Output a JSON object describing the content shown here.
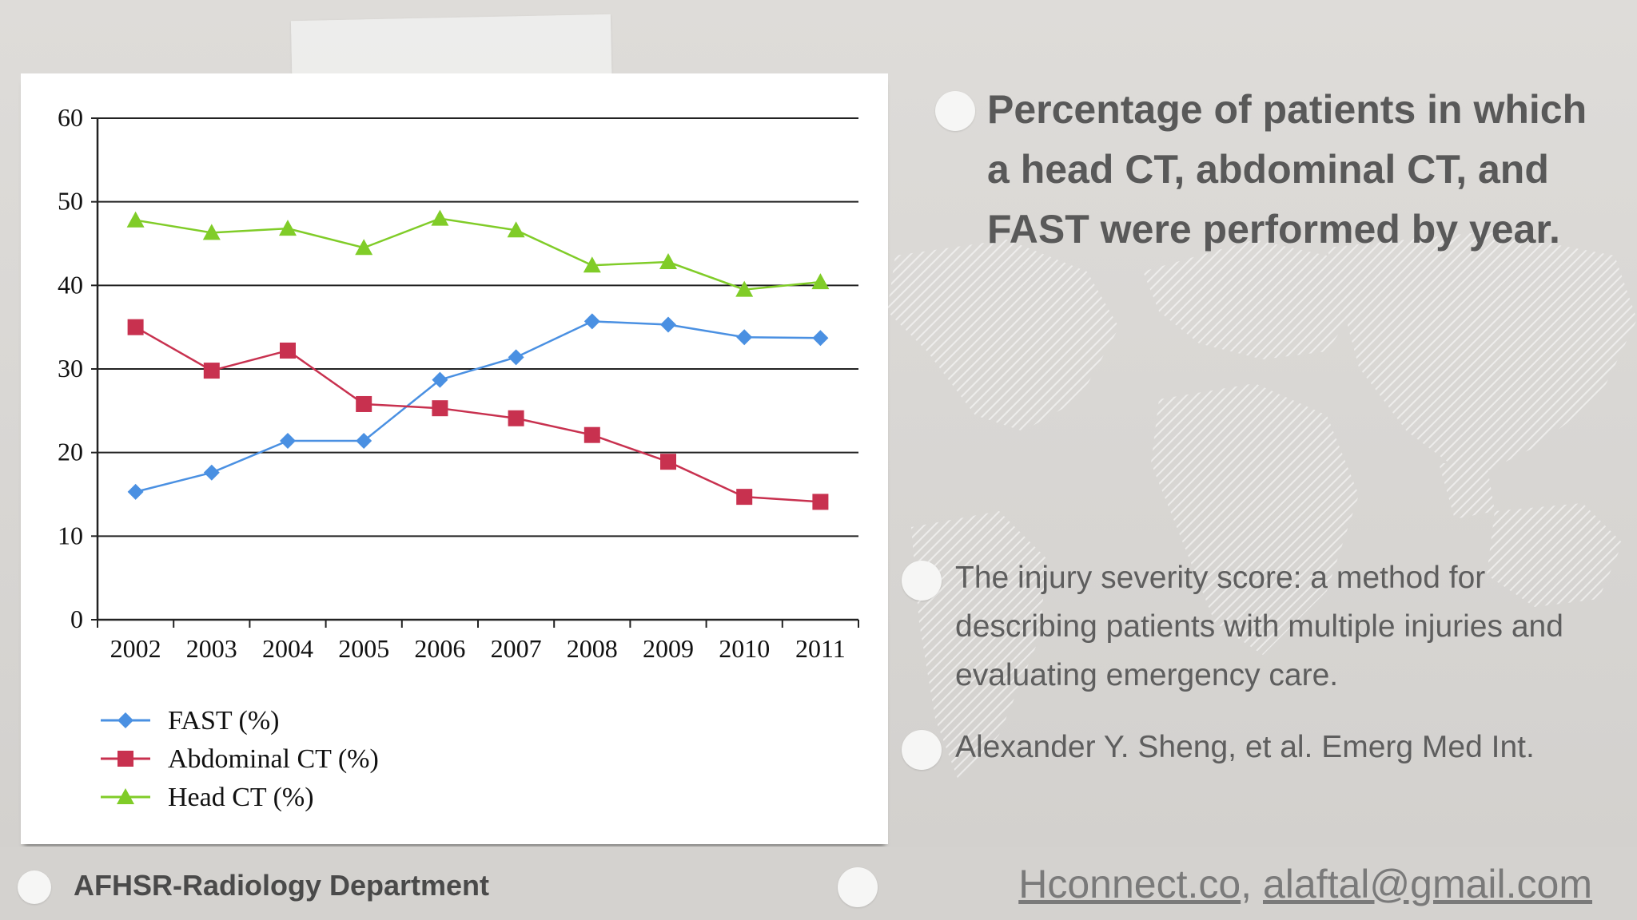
{
  "chart_data": {
    "type": "line",
    "categories": [
      "2002",
      "2003",
      "2004",
      "2005",
      "2006",
      "2007",
      "2008",
      "2009",
      "2010",
      "2011"
    ],
    "ylim": [
      0,
      60
    ],
    "yticks": [
      0,
      10,
      20,
      30,
      40,
      50,
      60
    ],
    "grid": true,
    "legend_position": "bottom-left",
    "series": [
      {
        "name": "FAST (%)",
        "marker": "diamond",
        "color": "#4a90e2",
        "values": [
          15.3,
          17.6,
          21.4,
          21.4,
          28.7,
          31.4,
          35.7,
          35.3,
          33.8,
          33.7
        ]
      },
      {
        "name": "Abdominal CT (%)",
        "marker": "square",
        "color": "#c8314f",
        "values": [
          35.0,
          29.8,
          32.2,
          25.8,
          25.3,
          24.1,
          22.1,
          18.9,
          14.7,
          14.1
        ]
      },
      {
        "name": "Head CT (%)",
        "marker": "triangle",
        "color": "#80cc28",
        "values": [
          47.8,
          46.3,
          46.8,
          44.5,
          48.0,
          46.6,
          42.4,
          42.8,
          39.5,
          40.4
        ]
      }
    ]
  },
  "slide": {
    "title": "Percentage of patients in which a head CT, abdominal CT, and FAST were performed by year.",
    "reference_1": "The injury severity score: a method for describing patients with multiple injuries and evaluating emergency care.",
    "reference_2": "Alexander Y. Sheng, et al. Emerg Med Int."
  },
  "footer": {
    "department": "AFHSR-Radiology Department",
    "link_1": "Hconnect.co",
    "separator": ",",
    "link_2": "alaftal@gmail.com"
  },
  "colors": {
    "fast": "#4a90e2",
    "abdominal_ct": "#c8314f",
    "head_ct": "#80cc28",
    "text": "#595959"
  }
}
